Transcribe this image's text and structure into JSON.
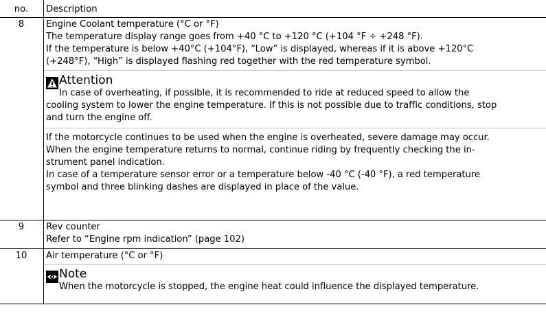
{
  "header": {
    "no": "no.",
    "description": "Description"
  },
  "rows": [
    {
      "no": "8",
      "lines": [
        "Engine Coolant temperature (°C or °F)",
        "The temperature display range goes from +40 °C to +120 °C (+104 °F ÷ +248 °F).",
        "If the temperature is below +40°C (+104°F), “Low” is displayed, whereas if it is above +120°C",
        "(+248°F), “High” is displayed flashing red together with the red temperature symbol."
      ],
      "callout": {
        "title": "Attention",
        "icon": "warning-triangle-icon",
        "lines": [
          "In case of overheating, if possible, it is recommended to ride at reduced speed to allow the",
          "cooling system to lower the engine temperature. If this is not possible due to traffic conditions, stop",
          "and turn the engine off."
        ]
      },
      "after_lines": [
        "If the motorcycle continues to be used when the engine is overheated, severe damage may occur.",
        "When the engine temperature returns to normal, continue riding by frequently checking the in-",
        "strument panel indication.",
        "In case of a temperature sensor error or a temperature below -40 °C (-40 °F), a red temperature",
        "symbol and three blinking dashes are displayed in place of the value."
      ]
    },
    {
      "no": "9",
      "lines": [
        "Rev counter",
        "Refer to “Engine rpm indication” (page 102)"
      ]
    },
    {
      "no": "10",
      "lines": [
        "Air temperature (°C or °F)"
      ],
      "callout": {
        "title": "Note",
        "icon": "eye-note-icon",
        "lines": [
          "When the motorcycle is stopped, the engine heat could influence the displayed temperature."
        ]
      }
    }
  ]
}
